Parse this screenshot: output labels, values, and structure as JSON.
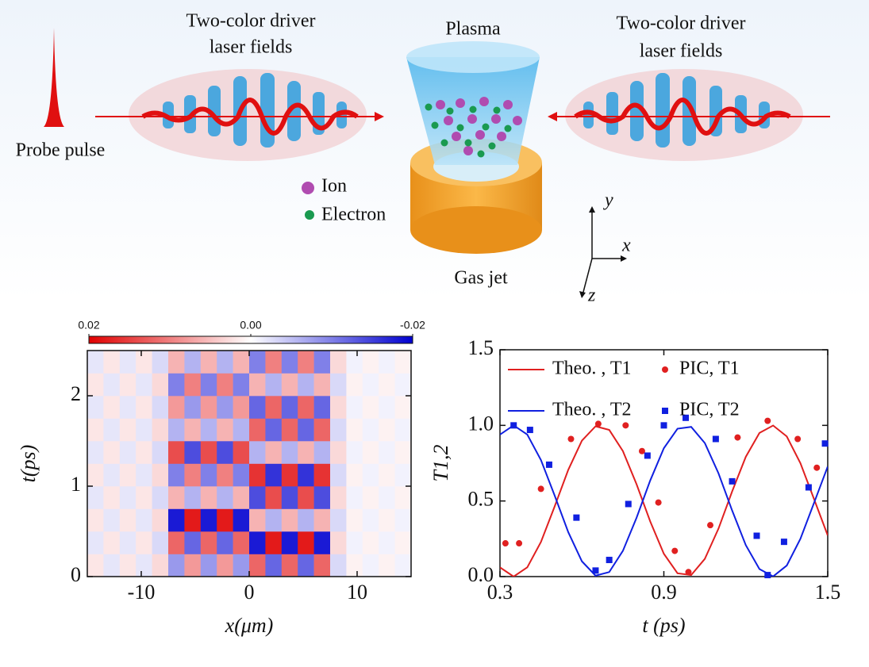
{
  "diagram": {
    "probe": "Probe  pulse",
    "left_laser": [
      "Two-color driver",
      "laser fields"
    ],
    "right_laser": [
      "Two-color driver",
      "laser fields"
    ],
    "plasma": "Plasma",
    "ion": "Ion",
    "electron": "Electron",
    "gas_jet": "Gas jet",
    "axes": {
      "y": "y",
      "x": "x",
      "z": "z"
    }
  },
  "chart_data": [
    {
      "type": "heatmap",
      "xlabel": "x(μm)",
      "ylabel": "t(ps)",
      "xlim": [
        -15,
        15
      ],
      "xticks": [
        -10,
        0,
        10
      ],
      "ylim": [
        0,
        2.5
      ],
      "yticks": [
        0,
        1,
        2
      ],
      "zlim": [
        0.02,
        -0.02
      ],
      "zticks": [
        0.02,
        {
          "value": 0,
          "label": "0.00"
        },
        -0.02
      ],
      "colors": {
        "positive": "#e00000",
        "zero": "#ffffff",
        "negative": "#0000d0"
      },
      "xbins": [
        -15,
        -13.5,
        -12,
        -10.5,
        -9,
        -7.5,
        -6,
        -4.5,
        -3,
        -1.5,
        0,
        1.5,
        3,
        4.5,
        6,
        7.5,
        9,
        10.5,
        12,
        13.5,
        15
      ],
      "ybins": [
        0,
        0.25,
        0.5,
        0.75,
        1,
        1.25,
        1.5,
        1.75,
        2,
        2.25,
        2.5
      ],
      "values": [
        [
          0.002,
          -0.002,
          0.002,
          -0.002,
          0.003,
          -0.008,
          0.008,
          -0.008,
          0.008,
          -0.008,
          0.012,
          -0.012,
          0.012,
          -0.012,
          0.012,
          -0.003,
          0.001,
          -0.001,
          0.001,
          -0.001
        ],
        [
          -0.002,
          0.002,
          -0.002,
          0.002,
          -0.003,
          0.012,
          -0.012,
          0.012,
          -0.012,
          0.012,
          -0.018,
          0.018,
          -0.018,
          0.018,
          -0.018,
          0.003,
          -0.001,
          0.001,
          -0.001,
          0.001
        ],
        [
          0.002,
          -0.002,
          0.002,
          -0.002,
          0.003,
          -0.018,
          0.018,
          -0.018,
          0.018,
          -0.018,
          0.006,
          -0.006,
          0.006,
          -0.006,
          0.006,
          -0.003,
          0.001,
          -0.001,
          0.001,
          -0.001
        ],
        [
          -0.002,
          0.002,
          -0.002,
          0.002,
          -0.003,
          0.006,
          -0.006,
          0.006,
          -0.006,
          0.006,
          -0.014,
          0.014,
          -0.014,
          0.014,
          -0.014,
          0.003,
          -0.001,
          0.001,
          -0.001,
          0.001
        ],
        [
          0.002,
          -0.002,
          0.002,
          -0.002,
          0.003,
          -0.01,
          0.01,
          -0.01,
          0.01,
          -0.01,
          0.016,
          -0.016,
          0.016,
          -0.016,
          0.016,
          -0.003,
          0.001,
          -0.001,
          0.001,
          -0.001
        ],
        [
          -0.002,
          0.002,
          -0.002,
          0.002,
          -0.003,
          0.014,
          -0.014,
          0.014,
          -0.014,
          0.014,
          -0.006,
          0.006,
          -0.006,
          0.006,
          -0.006,
          0.003,
          -0.001,
          0.001,
          -0.001,
          0.001
        ],
        [
          0.002,
          -0.002,
          0.002,
          -0.002,
          0.003,
          -0.006,
          0.006,
          -0.006,
          0.006,
          -0.006,
          0.012,
          -0.012,
          0.012,
          -0.012,
          0.012,
          -0.003,
          0.001,
          -0.001,
          0.001,
          -0.001
        ],
        [
          -0.002,
          0.002,
          -0.002,
          0.002,
          -0.003,
          0.008,
          -0.008,
          0.008,
          -0.008,
          0.008,
          -0.012,
          0.012,
          -0.012,
          0.012,
          -0.012,
          0.003,
          -0.001,
          0.001,
          -0.001,
          0.001
        ],
        [
          0.002,
          -0.002,
          0.002,
          -0.002,
          0.003,
          -0.01,
          0.01,
          -0.01,
          0.01,
          -0.01,
          0.006,
          -0.006,
          0.006,
          -0.006,
          0.006,
          -0.003,
          0.001,
          -0.001,
          0.001,
          -0.001
        ],
        [
          -0.002,
          0.002,
          -0.002,
          0.002,
          -0.003,
          0.006,
          -0.006,
          0.006,
          -0.006,
          0.006,
          -0.01,
          0.01,
          -0.01,
          0.01,
          -0.01,
          0.003,
          -0.001,
          0.001,
          -0.001,
          0.001
        ]
      ]
    },
    {
      "type": "line",
      "xlabel": "t (ps)",
      "ylabel": "T1,2",
      "xlim": [
        0.3,
        1.5
      ],
      "xticks": [
        0.3,
        0.9,
        1.5
      ],
      "ylim": [
        0,
        1.5
      ],
      "yticks": [
        {
          "value": 0,
          "label": "0.0"
        },
        0.5,
        {
          "value": 1,
          "label": "1.0"
        },
        1.5
      ],
      "series": [
        {
          "name": "Theo. , T1",
          "color": "#e02020",
          "style": "line",
          "x": [
            0.3,
            0.35,
            0.4,
            0.45,
            0.5,
            0.55,
            0.6,
            0.65,
            0.7,
            0.75,
            0.8,
            0.85,
            0.9,
            0.95,
            1.0,
            1.05,
            1.1,
            1.15,
            1.2,
            1.25,
            1.3,
            1.35,
            1.4,
            1.45,
            1.5
          ],
          "values": [
            0.061,
            0,
            0.061,
            0.229,
            0.463,
            0.706,
            0.899,
            0.994,
            0.97,
            0.83,
            0.611,
            0.365,
            0.151,
            0.022,
            0.0099,
            0.117,
            0.317,
            0.563,
            0.792,
            0.95,
            0.999,
            0.927,
            0.75,
            0.512,
            0.272
          ]
        },
        {
          "name": "PIC, T1",
          "color": "#e02020",
          "style": "scatter",
          "marker": "circle",
          "x": [
            0.32,
            0.37,
            0.45,
            0.56,
            0.66,
            0.76,
            0.82,
            0.88,
            0.94,
            0.99,
            1.07,
            1.17,
            1.28,
            1.39,
            1.46
          ],
          "values": [
            0.22,
            0.22,
            0.58,
            0.91,
            1.01,
            1.0,
            0.83,
            0.49,
            0.17,
            0.03,
            0.34,
            0.92,
            1.03,
            0.91,
            0.72
          ]
        },
        {
          "name": "Theo. , T2",
          "color": "#1020e0",
          "style": "line",
          "x": [
            0.3,
            0.35,
            0.4,
            0.45,
            0.5,
            0.55,
            0.6,
            0.65,
            0.7,
            0.75,
            0.8,
            0.85,
            0.9,
            0.95,
            1.0,
            1.05,
            1.1,
            1.15,
            1.2,
            1.25,
            1.3,
            1.35,
            1.4,
            1.45,
            1.5
          ],
          "values": [
            0.939,
            1,
            0.939,
            0.771,
            0.537,
            0.294,
            0.101,
            0.006,
            0.03,
            0.17,
            0.389,
            0.635,
            0.849,
            0.978,
            0.99,
            0.883,
            0.683,
            0.437,
            0.208,
            0.05,
            0.001,
            0.073,
            0.25,
            0.488,
            0.728
          ]
        },
        {
          "name": "PIC, T2",
          "color": "#1020e0",
          "style": "scatter",
          "marker": "square",
          "x": [
            0.35,
            0.41,
            0.48,
            0.58,
            0.65,
            0.7,
            0.77,
            0.84,
            0.9,
            0.98,
            1.09,
            1.15,
            1.24,
            1.28,
            1.34,
            1.43,
            1.49
          ],
          "values": [
            1.0,
            0.97,
            0.74,
            0.39,
            0.04,
            0.11,
            0.48,
            0.8,
            1.0,
            1.05,
            0.91,
            0.63,
            0.27,
            0.01,
            0.23,
            0.59,
            0.88
          ]
        }
      ]
    }
  ]
}
